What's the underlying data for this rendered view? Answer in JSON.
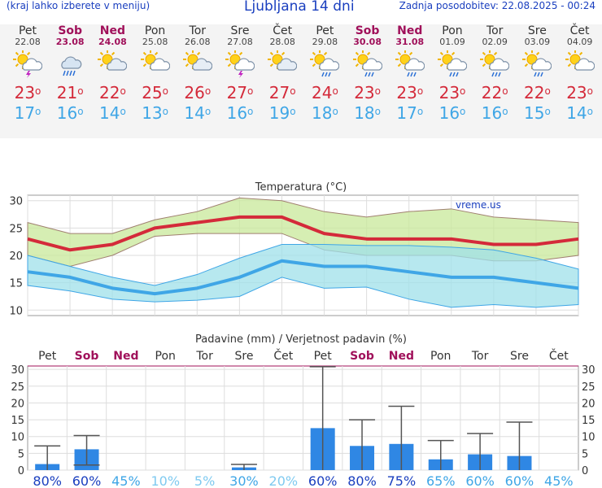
{
  "header": {
    "note": "(kraj lahko izberete v meniju)",
    "title": "Ljubljana 14 dni",
    "updated": "Zadnja posodobitev: 22.08.2025 - 00:24"
  },
  "degree_symbol": "o",
  "days": [
    {
      "name": "Pet",
      "date": "22.08",
      "weekend": false,
      "icon": "sun-thunderstorm-icon",
      "max": 23,
      "min": 17
    },
    {
      "name": "Sob",
      "date": "23.08",
      "weekend": true,
      "icon": "cloud-rain-icon",
      "max": 21,
      "min": 16
    },
    {
      "name": "Ned",
      "date": "24.08",
      "weekend": true,
      "icon": "partly-cloudy-icon",
      "max": 22,
      "min": 14
    },
    {
      "name": "Pon",
      "date": "25.08",
      "weekend": false,
      "icon": "sun-cloud-icon",
      "max": 25,
      "min": 13
    },
    {
      "name": "Tor",
      "date": "26.08",
      "weekend": false,
      "icon": "partly-cloudy-icon",
      "max": 26,
      "min": 14
    },
    {
      "name": "Sre",
      "date": "27.08",
      "weekend": false,
      "icon": "sun-thunderstorm-icon",
      "max": 27,
      "min": 16
    },
    {
      "name": "Čet",
      "date": "28.08",
      "weekend": false,
      "icon": "partly-cloudy-icon",
      "max": 27,
      "min": 19
    },
    {
      "name": "Pet",
      "date": "29.08",
      "weekend": false,
      "icon": "sun-rain-icon",
      "max": 24,
      "min": 18
    },
    {
      "name": "Sob",
      "date": "30.08",
      "weekend": true,
      "icon": "sun-rain-icon",
      "max": 23,
      "min": 18
    },
    {
      "name": "Ned",
      "date": "31.08",
      "weekend": true,
      "icon": "sun-rain-icon",
      "max": 23,
      "min": 17
    },
    {
      "name": "Pon",
      "date": "01.09",
      "weekend": false,
      "icon": "sun-rain-icon",
      "max": 23,
      "min": 16
    },
    {
      "name": "Tor",
      "date": "02.09",
      "weekend": false,
      "icon": "sun-rain-icon",
      "max": 22,
      "min": 16
    },
    {
      "name": "Sre",
      "date": "03.09",
      "weekend": false,
      "icon": "sun-rain-icon",
      "max": 22,
      "min": 15
    },
    {
      "name": "Čet",
      "date": "04.09",
      "weekend": false,
      "icon": "sun-cloud-icon",
      "max": 23,
      "min": 14
    }
  ],
  "chart_data": [
    {
      "type": "line",
      "title": "Temperatura (°C)",
      "watermark": "vreme.us",
      "x": [
        "Pet",
        "Sob",
        "Ned",
        "Pon",
        "Tor",
        "Sre",
        "Čet",
        "Pet",
        "Sob",
        "Ned",
        "Pon",
        "Tor",
        "Sre",
        "Čet"
      ],
      "ylim": [
        9,
        31
      ],
      "yticks": [
        10,
        15,
        20,
        25,
        30
      ],
      "grid": true,
      "series": [
        {
          "values": [
            23,
            21,
            22,
            25,
            26,
            27,
            27,
            24,
            23,
            23,
            23,
            22,
            22,
            23
          ],
          "color": "#d42a3a"
        },
        {
          "values": [
            17,
            16,
            14,
            13,
            14,
            16,
            19,
            18,
            18,
            17,
            16,
            16,
            15,
            14
          ],
          "color": "#3fa6e6"
        },
        {
          "band": "upper",
          "upper": [
            26,
            24,
            24,
            26.5,
            28,
            30.5,
            30,
            28,
            27,
            28,
            28.5,
            27,
            26.5,
            26
          ],
          "lower": [
            20,
            18,
            20,
            23.5,
            24,
            24,
            24,
            21,
            20,
            20,
            20,
            19,
            19,
            20
          ],
          "color": "#c8e89a"
        },
        {
          "band": "lower",
          "upper": [
            20,
            18,
            16,
            14.5,
            16.5,
            19.5,
            22,
            22,
            21.8,
            21.8,
            21.5,
            21,
            19.5,
            17.5
          ],
          "lower": [
            14.5,
            13.5,
            12,
            11.5,
            11.8,
            12.5,
            16,
            14,
            14.2,
            12,
            10.5,
            11,
            10.5,
            11
          ],
          "color": "#9fe0ea"
        }
      ]
    },
    {
      "type": "bar",
      "title": "Padavine (mm) / Verjetnost padavin (%)",
      "x": [
        "Pet",
        "Sob",
        "Ned",
        "Pon",
        "Tor",
        "Sre",
        "Čet",
        "Pet",
        "Sob",
        "Ned",
        "Pon",
        "Tor",
        "Sre",
        "Čet"
      ],
      "ylim": [
        0,
        31
      ],
      "yticks": [
        0,
        5,
        10,
        15,
        20,
        25,
        30
      ],
      "grid": true,
      "values": [
        1.8,
        6.2,
        0,
        0,
        0,
        0.8,
        0,
        12.5,
        7.2,
        7.8,
        3.2,
        4.7,
        4.2,
        0
      ],
      "ranges": [
        [
          0,
          7.2
        ],
        [
          1.5,
          10.3
        ],
        null,
        null,
        null,
        [
          0,
          1.7
        ],
        null,
        [
          0,
          30.8
        ],
        [
          0,
          15
        ],
        [
          0,
          19
        ],
        [
          0,
          8.8
        ],
        [
          0,
          10.9
        ],
        [
          0,
          14.3
        ],
        null
      ],
      "probability": [
        "80%",
        "60%",
        "45%",
        "10%",
        "5%",
        "30%",
        "20%",
        "60%",
        "80%",
        "75%",
        "65%",
        "60%",
        "60%",
        "45%"
      ],
      "probability_colors": [
        "#1a3fbf",
        "#1a3fbf",
        "#3fa6e6",
        "#7fcaf0",
        "#7fcaf0",
        "#3fa6e6",
        "#7fcaf0",
        "#1a3fbf",
        "#1a3fbf",
        "#1a3fbf",
        "#3fa6e6",
        "#3fa6e6",
        "#3fa6e6",
        "#3fa6e6"
      ]
    }
  ]
}
